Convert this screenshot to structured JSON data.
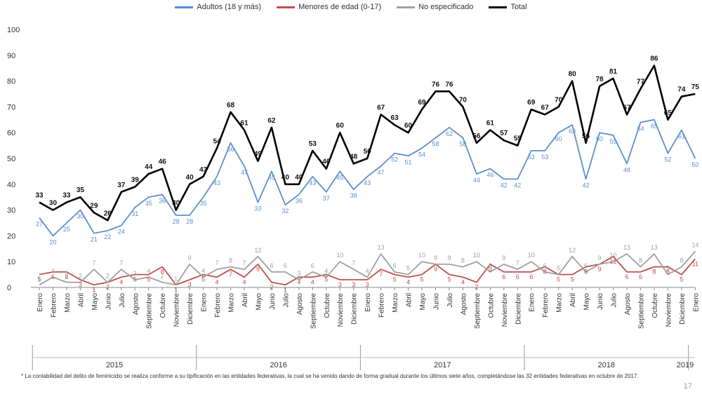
{
  "legend": {
    "items": [
      {
        "label": "Adultos (18 y más)",
        "color": "#5b8fcf"
      },
      {
        "label": "Menores de edad (0-17)",
        "color": "#c0504d"
      },
      {
        "label": "No especificado",
        "color": "#a0a0a0"
      },
      {
        "label": "Total",
        "color": "#000000"
      }
    ]
  },
  "footnote": "* La contabilidad del delito de feminicidio se realiza conforme a su tipificación en las entidades federativas, la cual se ha venido dando de forma gradual durante los últimos siete años, completándose las 32 entidades federativas en octubre de 2017.",
  "page_number": "17",
  "chart_data": {
    "type": "line",
    "ylim": [
      0,
      100
    ],
    "yticks": [
      0,
      10,
      20,
      30,
      40,
      50,
      60,
      70,
      80,
      90,
      100
    ],
    "months": [
      "Enero",
      "Febrero",
      "Marzo",
      "Abril",
      "Mayo",
      "Junio",
      "Julio",
      "Agosto",
      "Septiembre",
      "Octubre",
      "Noviembre",
      "Diciembre"
    ],
    "x_labels": [
      "Enero",
      "Febrero",
      "Marzo",
      "Abril",
      "Mayo",
      "Junio",
      "Julio",
      "Agosto",
      "Septiembre",
      "Octubre",
      "Noviembre",
      "Diciembre",
      "Enero",
      "Febrero",
      "Marzo",
      "Abril",
      "Mayo",
      "Junio",
      "Julio",
      "Agosto",
      "Septiembre",
      "Octubre",
      "Noviembre",
      "Diciembre",
      "Enero",
      "Febrero",
      "Marzo",
      "Abril",
      "Mayo",
      "Junio",
      "Julio",
      "Agosto",
      "Septiembre",
      "Octubre",
      "Noviembre",
      "Diciembre",
      "Enero",
      "Febrero",
      "Marzo",
      "Abril",
      "Mayo",
      "Junio",
      "Julio",
      "Agosto",
      "Septiembre",
      "Octubre",
      "Noviembre",
      "Diciembre",
      "Enero"
    ],
    "years": [
      {
        "label": "2015",
        "start": 0,
        "count": 12
      },
      {
        "label": "2016",
        "start": 12,
        "count": 12
      },
      {
        "label": "2017",
        "start": 24,
        "count": 12
      },
      {
        "label": "2018",
        "start": 36,
        "count": 12
      },
      {
        "label": "2019",
        "start": 48,
        "count": 1
      }
    ],
    "series": [
      {
        "name": "Total",
        "color": "#000000",
        "width": 2.6,
        "values": [
          33,
          30,
          33,
          35,
          29,
          26,
          37,
          39,
          44,
          46,
          30,
          40,
          43,
          54,
          68,
          61,
          49,
          62,
          40,
          40,
          53,
          46,
          60,
          48,
          50,
          67,
          63,
          60,
          69,
          76,
          76,
          70,
          56,
          61,
          57,
          55,
          69,
          67,
          70,
          80,
          56,
          78,
          81,
          67,
          77,
          86,
          65,
          74,
          75
        ]
      },
      {
        "name": "Adultos (18 y más)",
        "color": "#5b8fcf",
        "width": 1.8,
        "values": [
          27,
          20,
          25,
          30,
          21,
          22,
          24,
          31,
          35,
          36,
          28,
          28,
          35,
          43,
          56,
          47,
          33,
          45,
          32,
          36,
          43,
          37,
          45,
          38,
          43,
          47,
          52,
          51,
          54,
          58,
          62,
          58,
          44,
          46,
          42,
          42,
          53,
          53,
          60,
          63,
          42,
          60,
          59,
          48,
          64,
          65,
          52,
          61,
          50
        ]
      },
      {
        "name": "Menores de edad (0-17)",
        "color": "#c0504d",
        "width": 1.8,
        "values": [
          5,
          6,
          6,
          3,
          1,
          2,
          4,
          5,
          5,
          8,
          1,
          3,
          5,
          4,
          7,
          4,
          9,
          2,
          1,
          4,
          4,
          5,
          3,
          3,
          3,
          7,
          5,
          4,
          5,
          9,
          5,
          4,
          2,
          9,
          6,
          6,
          6,
          8,
          5,
          5,
          8,
          9,
          12,
          6,
          6,
          8,
          8,
          5,
          11
        ]
      },
      {
        "name": "No especificado",
        "color": "#a0a0a0",
        "width": 1.8,
        "values": [
          1,
          4,
          2,
          2,
          7,
          2,
          7,
          3,
          4,
          2,
          1,
          9,
          4,
          7,
          8,
          7,
          12,
          6,
          6,
          3,
          6,
          4,
          10,
          7,
          4,
          13,
          6,
          5,
          10,
          9,
          9,
          8,
          10,
          6,
          9,
          7,
          10,
          6,
          5,
          12,
          6,
          9,
          10,
          13,
          8,
          13,
          5,
          8,
          14
        ]
      }
    ]
  }
}
